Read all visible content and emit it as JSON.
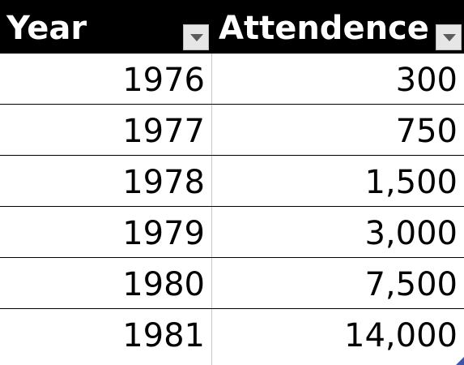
{
  "table": {
    "headers": {
      "year": "Year",
      "attendance": "Attendence"
    },
    "rows": [
      {
        "year": "1976",
        "attendance": "300"
      },
      {
        "year": "1977",
        "attendance": "750"
      },
      {
        "year": "1978",
        "attendance": "1,500"
      },
      {
        "year": "1979",
        "attendance": "3,000"
      },
      {
        "year": "1980",
        "attendance": "7,500"
      },
      {
        "year": "1981",
        "attendance": "14,000"
      }
    ]
  },
  "icons": {
    "filter": "chevron-down-icon",
    "resize": "resize-handle-icon"
  },
  "colors": {
    "header_background": "#000000",
    "header_text": "#ffffff",
    "row_border": "#000000",
    "filter_button": "#e6e6e6",
    "resize_handle": "#3f55a8"
  }
}
